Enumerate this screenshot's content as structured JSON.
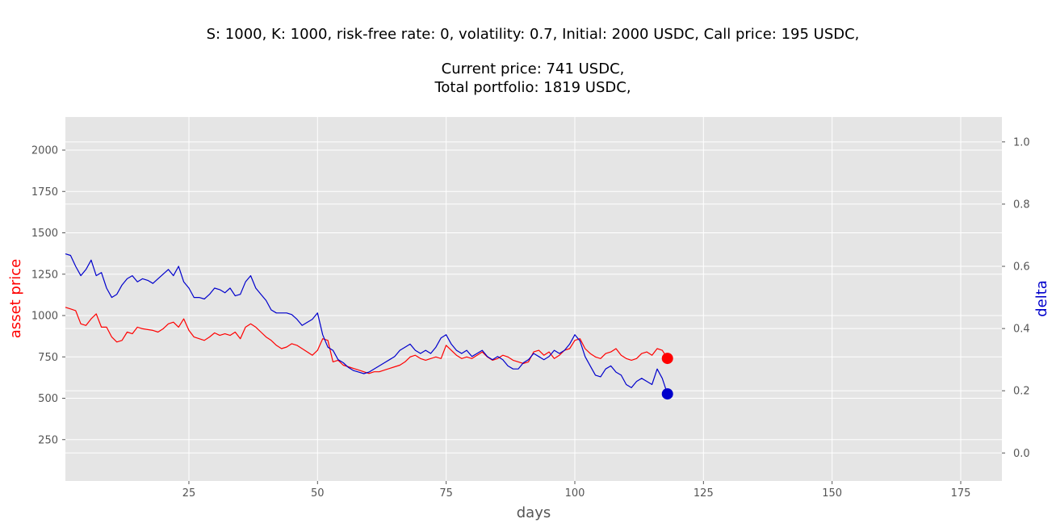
{
  "chart_data": {
    "type": "line",
    "title_lines": [
      "S: 1000, K: 1000, risk-free rate: 0, volatility: 0.7,  Initial: 2000 USDC, Call price: 195 USDC,",
      "Current price: 741 USDC,",
      "Total portfolio: 1819 USDC,"
    ],
    "xlabel": "days",
    "ylabel_left": "asset price",
    "ylabel_right": "delta",
    "xlim": [
      1,
      183
    ],
    "ylim_left": [
      0,
      2200
    ],
    "ylim_right": [
      -0.09,
      1.08
    ],
    "x_ticks": [
      25,
      50,
      75,
      100,
      125,
      150,
      175
    ],
    "y_left_ticks": [
      250,
      500,
      750,
      1000,
      1250,
      1500,
      1750,
      2000
    ],
    "y_right_ticks": [
      0.0,
      0.2,
      0.4,
      0.6,
      0.8,
      1.0
    ],
    "y_right_tick_labels": [
      "0.0",
      "0.2",
      "0.4",
      "0.6",
      "0.8",
      "1.0"
    ],
    "grid": true,
    "colors": {
      "asset_price": "#ff0000",
      "delta": "#0000cc",
      "asset_price_label": "#ff0000",
      "delta_label": "#0000cc",
      "plot_background": "#e5e5e5",
      "grid": "#ffffff"
    },
    "series": [
      {
        "axis": "left",
        "x": [
          1,
          2,
          3,
          4,
          5,
          6,
          7,
          8,
          9,
          10,
          11,
          12,
          13,
          14,
          15,
          16,
          17,
          18,
          19,
          20,
          21,
          22,
          23,
          24,
          25,
          26,
          27,
          28,
          29,
          30,
          31,
          32,
          33,
          34,
          35,
          36,
          37,
          38,
          39,
          40,
          41,
          42,
          43,
          44,
          45,
          46,
          47,
          48,
          49,
          50,
          51,
          52,
          53,
          54,
          55,
          56,
          57,
          58,
          59,
          60,
          61,
          62,
          63,
          64,
          65,
          66,
          67,
          68,
          69,
          70,
          71,
          72,
          73,
          74,
          75,
          76,
          77,
          78,
          79,
          80,
          81,
          82,
          83,
          84,
          85,
          86,
          87,
          88,
          89,
          90,
          91,
          92,
          93,
          94,
          95,
          96,
          97,
          98,
          99,
          100,
          101,
          102,
          103,
          104,
          105,
          106,
          107,
          108,
          109,
          110,
          111,
          112,
          113,
          114,
          115,
          116,
          117,
          118
        ],
        "values": [
          1050,
          1040,
          1030,
          950,
          940,
          980,
          1010,
          930,
          930,
          870,
          840,
          850,
          900,
          890,
          930,
          920,
          915,
          910,
          900,
          920,
          950,
          960,
          930,
          980,
          910,
          870,
          860,
          850,
          870,
          895,
          880,
          890,
          880,
          900,
          860,
          930,
          950,
          930,
          900,
          870,
          850,
          820,
          800,
          810,
          830,
          820,
          800,
          780,
          760,
          790,
          860,
          850,
          720,
          730,
          700,
          690,
          680,
          670,
          660,
          650,
          660,
          660,
          670,
          680,
          690,
          700,
          720,
          750,
          760,
          740,
          730,
          740,
          750,
          740,
          820,
          790,
          760,
          740,
          750,
          740,
          760,
          780,
          750,
          730,
          740,
          760,
          750,
          730,
          720,
          710,
          720,
          780,
          790,
          760,
          780,
          740,
          760,
          790,
          800,
          850,
          860,
          800,
          770,
          750,
          740,
          770,
          780,
          800,
          760,
          740,
          730,
          740,
          770,
          780,
          760,
          800,
          790,
          741
        ]
      },
      {
        "axis": "right",
        "x": [
          1,
          2,
          3,
          4,
          5,
          6,
          7,
          8,
          9,
          10,
          11,
          12,
          13,
          14,
          15,
          16,
          17,
          18,
          19,
          20,
          21,
          22,
          23,
          24,
          25,
          26,
          27,
          28,
          29,
          30,
          31,
          32,
          33,
          34,
          35,
          36,
          37,
          38,
          39,
          40,
          41,
          42,
          43,
          44,
          45,
          46,
          47,
          48,
          49,
          50,
          51,
          52,
          53,
          54,
          55,
          56,
          57,
          58,
          59,
          60,
          61,
          62,
          63,
          64,
          65,
          66,
          67,
          68,
          69,
          70,
          71,
          72,
          73,
          74,
          75,
          76,
          77,
          78,
          79,
          80,
          81,
          82,
          83,
          84,
          85,
          86,
          87,
          88,
          89,
          90,
          91,
          92,
          93,
          94,
          95,
          96,
          97,
          98,
          99,
          100,
          101,
          102,
          103,
          104,
          105,
          106,
          107,
          108,
          109,
          110,
          111,
          112,
          113,
          114,
          115,
          116,
          117,
          118
        ],
        "values": [
          0.64,
          0.635,
          0.6,
          0.57,
          0.59,
          0.62,
          0.57,
          0.58,
          0.53,
          0.5,
          0.51,
          0.54,
          0.56,
          0.57,
          0.55,
          0.56,
          0.555,
          0.545,
          0.56,
          0.575,
          0.59,
          0.57,
          0.6,
          0.55,
          0.53,
          0.5,
          0.5,
          0.495,
          0.51,
          0.53,
          0.525,
          0.515,
          0.53,
          0.505,
          0.51,
          0.55,
          0.57,
          0.53,
          0.51,
          0.49,
          0.46,
          0.45,
          0.45,
          0.45,
          0.445,
          0.43,
          0.41,
          0.42,
          0.43,
          0.45,
          0.38,
          0.34,
          0.33,
          0.3,
          0.29,
          0.275,
          0.265,
          0.26,
          0.255,
          0.26,
          0.27,
          0.28,
          0.29,
          0.3,
          0.31,
          0.33,
          0.34,
          0.35,
          0.33,
          0.32,
          0.33,
          0.32,
          0.34,
          0.37,
          0.38,
          0.35,
          0.33,
          0.32,
          0.33,
          0.31,
          0.32,
          0.33,
          0.31,
          0.3,
          0.31,
          0.3,
          0.28,
          0.27,
          0.27,
          0.29,
          0.3,
          0.32,
          0.31,
          0.3,
          0.31,
          0.33,
          0.32,
          0.33,
          0.35,
          0.38,
          0.36,
          0.31,
          0.28,
          0.25,
          0.245,
          0.27,
          0.28,
          0.26,
          0.25,
          0.22,
          0.21,
          0.23,
          0.24,
          0.23,
          0.22,
          0.27,
          0.24,
          0.19
        ]
      }
    ],
    "markers": [
      {
        "axis": "left",
        "x": 118,
        "y": 741,
        "color": "#ff0000"
      },
      {
        "axis": "right",
        "x": 118,
        "y": 0.19,
        "color": "#0000cc"
      }
    ]
  }
}
